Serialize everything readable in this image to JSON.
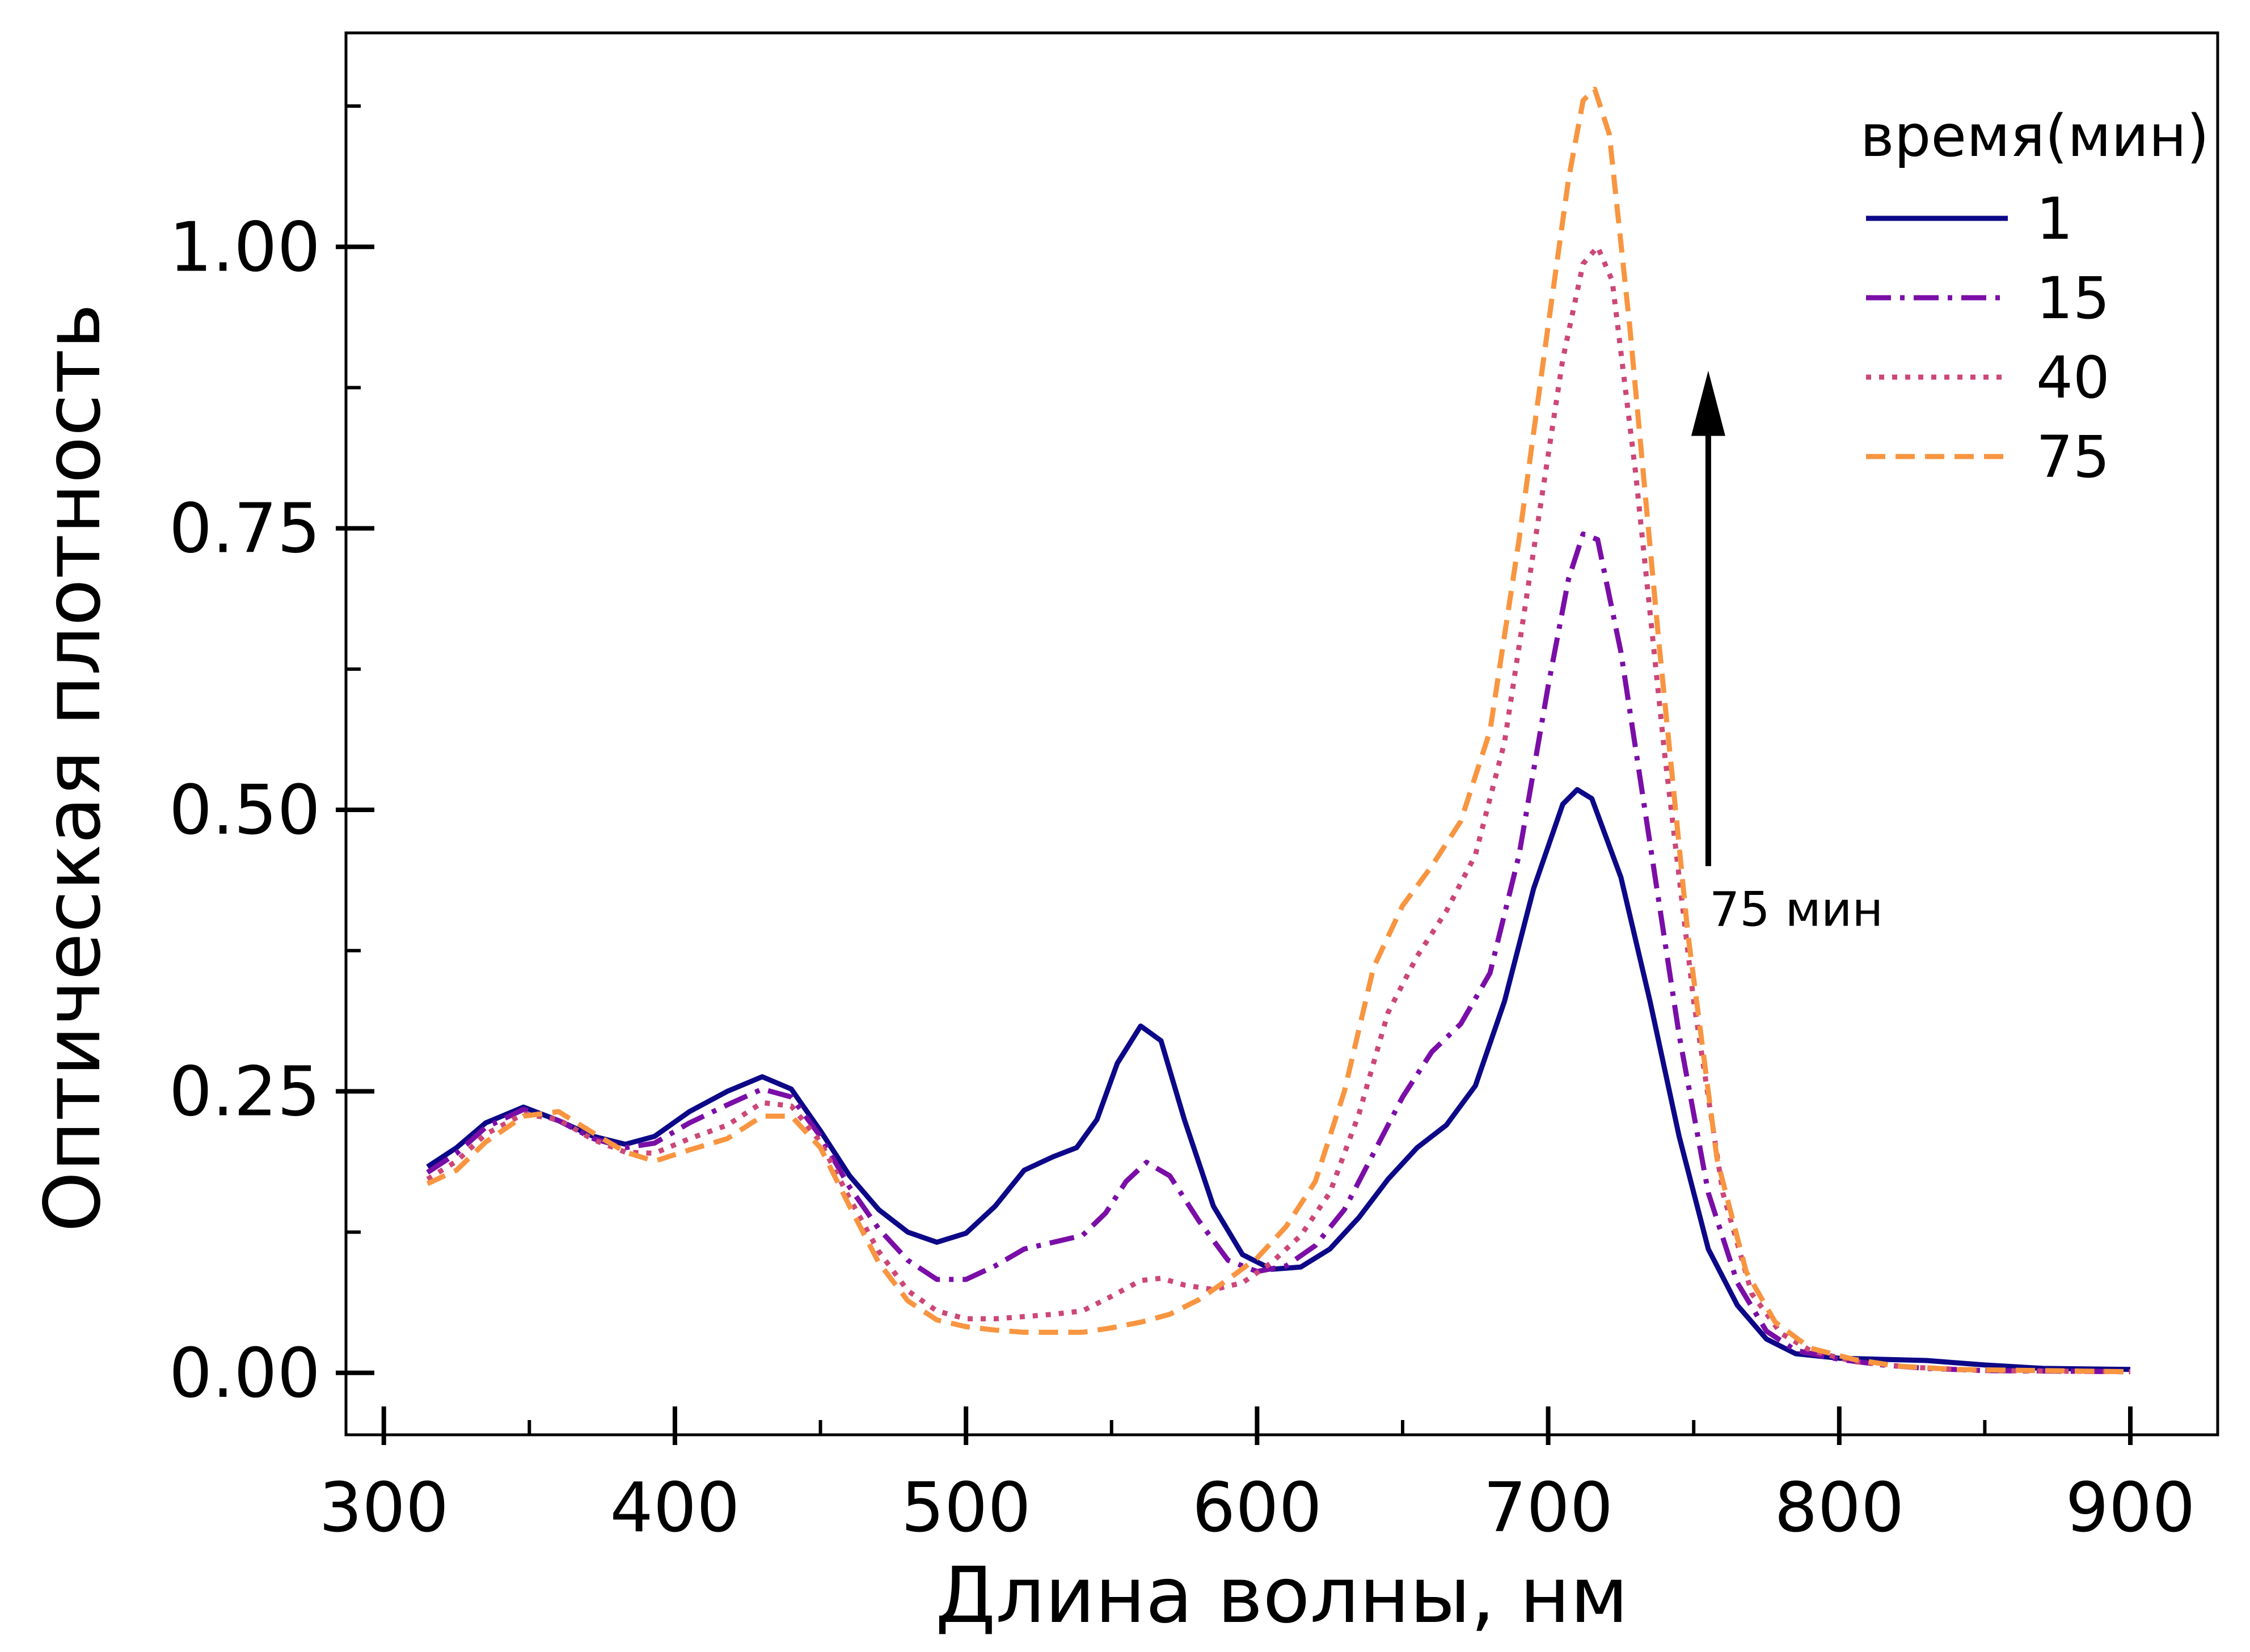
{
  "chart_data": {
    "type": "line",
    "xlabel": "Длина волны, нм",
    "ylabel": "Оптическая плотность",
    "xlim": [
      287,
      930
    ],
    "ylim": [
      -0.055,
      1.19
    ],
    "x_ticks": [
      300,
      400,
      500,
      600,
      700,
      800,
      900
    ],
    "x_tick_labels": [
      "300",
      "400",
      "500",
      "600",
      "700",
      "800",
      "900"
    ],
    "y_ticks": [
      0.0,
      0.25,
      0.5,
      0.75,
      1.0
    ],
    "y_tick_labels": [
      "0.00",
      "0.25",
      "0.50",
      "0.75",
      "1.00"
    ],
    "grid": false,
    "legend": {
      "title": "время(мин)",
      "position": "top-right"
    },
    "annotation": {
      "text": "75 мин",
      "arrow_x": 755,
      "arrow_from_y": 0.45,
      "arrow_to_y": 0.89
    },
    "series": [
      {
        "name": "1",
        "color": "#0d0887",
        "dash": "solid",
        "points": [
          [
            315,
            0.183
          ],
          [
            325,
            0.2
          ],
          [
            335,
            0.222
          ],
          [
            348,
            0.236
          ],
          [
            360,
            0.224
          ],
          [
            372,
            0.21
          ],
          [
            383,
            0.203
          ],
          [
            393,
            0.21
          ],
          [
            405,
            0.232
          ],
          [
            418,
            0.25
          ],
          [
            430,
            0.263
          ],
          [
            440,
            0.252
          ],
          [
            450,
            0.215
          ],
          [
            460,
            0.175
          ],
          [
            470,
            0.145
          ],
          [
            480,
            0.125
          ],
          [
            490,
            0.116
          ],
          [
            500,
            0.124
          ],
          [
            510,
            0.148
          ],
          [
            520,
            0.18
          ],
          [
            530,
            0.192
          ],
          [
            538,
            0.2
          ],
          [
            545,
            0.225
          ],
          [
            552,
            0.275
          ],
          [
            560,
            0.308
          ],
          [
            567,
            0.295
          ],
          [
            575,
            0.225
          ],
          [
            585,
            0.148
          ],
          [
            595,
            0.105
          ],
          [
            605,
            0.092
          ],
          [
            615,
            0.094
          ],
          [
            625,
            0.11
          ],
          [
            635,
            0.138
          ],
          [
            645,
            0.172
          ],
          [
            655,
            0.2
          ],
          [
            665,
            0.22
          ],
          [
            675,
            0.255
          ],
          [
            685,
            0.33
          ],
          [
            695,
            0.43
          ],
          [
            705,
            0.505
          ],
          [
            710,
            0.518
          ],
          [
            715,
            0.51
          ],
          [
            725,
            0.44
          ],
          [
            735,
            0.33
          ],
          [
            745,
            0.21
          ],
          [
            755,
            0.11
          ],
          [
            765,
            0.06
          ],
          [
            775,
            0.03
          ],
          [
            785,
            0.017
          ],
          [
            800,
            0.013
          ],
          [
            815,
            0.012
          ],
          [
            830,
            0.011
          ],
          [
            850,
            0.007
          ],
          [
            870,
            0.004
          ],
          [
            900,
            0.003
          ]
        ]
      },
      {
        "name": "15",
        "color": "#7a0ea7",
        "dash": "dashdot",
        "points": [
          [
            315,
            0.178
          ],
          [
            325,
            0.195
          ],
          [
            335,
            0.218
          ],
          [
            348,
            0.234
          ],
          [
            360,
            0.224
          ],
          [
            372,
            0.208
          ],
          [
            383,
            0.2
          ],
          [
            393,
            0.204
          ],
          [
            405,
            0.222
          ],
          [
            418,
            0.238
          ],
          [
            430,
            0.252
          ],
          [
            440,
            0.245
          ],
          [
            450,
            0.21
          ],
          [
            460,
            0.165
          ],
          [
            470,
            0.128
          ],
          [
            480,
            0.1
          ],
          [
            490,
            0.083
          ],
          [
            500,
            0.083
          ],
          [
            510,
            0.095
          ],
          [
            520,
            0.11
          ],
          [
            530,
            0.116
          ],
          [
            540,
            0.122
          ],
          [
            548,
            0.142
          ],
          [
            555,
            0.17
          ],
          [
            562,
            0.187
          ],
          [
            570,
            0.175
          ],
          [
            580,
            0.135
          ],
          [
            590,
            0.1
          ],
          [
            600,
            0.09
          ],
          [
            610,
            0.095
          ],
          [
            620,
            0.113
          ],
          [
            630,
            0.145
          ],
          [
            640,
            0.195
          ],
          [
            650,
            0.245
          ],
          [
            660,
            0.285
          ],
          [
            670,
            0.31
          ],
          [
            680,
            0.355
          ],
          [
            690,
            0.46
          ],
          [
            700,
            0.61
          ],
          [
            707,
            0.705
          ],
          [
            712,
            0.745
          ],
          [
            717,
            0.74
          ],
          [
            725,
            0.64
          ],
          [
            735,
            0.47
          ],
          [
            745,
            0.3
          ],
          [
            755,
            0.16
          ],
          [
            765,
            0.08
          ],
          [
            775,
            0.037
          ],
          [
            785,
            0.02
          ],
          [
            800,
            0.012
          ],
          [
            815,
            0.007
          ],
          [
            830,
            0.004
          ],
          [
            850,
            0.002
          ],
          [
            900,
            0.001
          ]
        ]
      },
      {
        "name": "40",
        "color": "#cc4778",
        "dash": "dotted",
        "points": [
          [
            315,
            0.172
          ],
          [
            325,
            0.188
          ],
          [
            335,
            0.212
          ],
          [
            348,
            0.23
          ],
          [
            360,
            0.225
          ],
          [
            372,
            0.207
          ],
          [
            383,
            0.196
          ],
          [
            393,
            0.195
          ],
          [
            405,
            0.208
          ],
          [
            418,
            0.22
          ],
          [
            430,
            0.24
          ],
          [
            440,
            0.237
          ],
          [
            450,
            0.205
          ],
          [
            460,
            0.155
          ],
          [
            470,
            0.108
          ],
          [
            480,
            0.073
          ],
          [
            490,
            0.055
          ],
          [
            500,
            0.048
          ],
          [
            510,
            0.048
          ],
          [
            520,
            0.05
          ],
          [
            530,
            0.052
          ],
          [
            540,
            0.055
          ],
          [
            550,
            0.068
          ],
          [
            560,
            0.082
          ],
          [
            567,
            0.084
          ],
          [
            575,
            0.078
          ],
          [
            585,
            0.074
          ],
          [
            595,
            0.08
          ],
          [
            605,
            0.098
          ],
          [
            615,
            0.122
          ],
          [
            625,
            0.16
          ],
          [
            635,
            0.23
          ],
          [
            645,
            0.32
          ],
          [
            655,
            0.37
          ],
          [
            665,
            0.41
          ],
          [
            675,
            0.46
          ],
          [
            685,
            0.56
          ],
          [
            695,
            0.73
          ],
          [
            705,
            0.9
          ],
          [
            712,
            0.985
          ],
          [
            717,
            1.0
          ],
          [
            722,
            0.97
          ],
          [
            730,
            0.8
          ],
          [
            740,
            0.55
          ],
          [
            750,
            0.33
          ],
          [
            760,
            0.16
          ],
          [
            770,
            0.07
          ],
          [
            780,
            0.035
          ],
          [
            790,
            0.02
          ],
          [
            805,
            0.01
          ],
          [
            825,
            0.005
          ],
          [
            850,
            0.002
          ],
          [
            900,
            0.001
          ]
        ]
      },
      {
        "name": "75",
        "color": "#f89540",
        "dash": "dashed",
        "points": [
          [
            315,
            0.168
          ],
          [
            325,
            0.18
          ],
          [
            335,
            0.205
          ],
          [
            348,
            0.228
          ],
          [
            360,
            0.232
          ],
          [
            372,
            0.213
          ],
          [
            383,
            0.196
          ],
          [
            393,
            0.188
          ],
          [
            405,
            0.198
          ],
          [
            418,
            0.208
          ],
          [
            430,
            0.228
          ],
          [
            440,
            0.228
          ],
          [
            450,
            0.2
          ],
          [
            460,
            0.148
          ],
          [
            470,
            0.098
          ],
          [
            480,
            0.064
          ],
          [
            490,
            0.047
          ],
          [
            500,
            0.041
          ],
          [
            510,
            0.038
          ],
          [
            520,
            0.036
          ],
          [
            530,
            0.036
          ],
          [
            540,
            0.036
          ],
          [
            550,
            0.04
          ],
          [
            560,
            0.045
          ],
          [
            570,
            0.052
          ],
          [
            580,
            0.065
          ],
          [
            590,
            0.083
          ],
          [
            600,
            0.102
          ],
          [
            610,
            0.13
          ],
          [
            620,
            0.17
          ],
          [
            630,
            0.25
          ],
          [
            640,
            0.36
          ],
          [
            650,
            0.415
          ],
          [
            660,
            0.45
          ],
          [
            670,
            0.49
          ],
          [
            680,
            0.57
          ],
          [
            690,
            0.74
          ],
          [
            700,
            0.93
          ],
          [
            707,
            1.06
          ],
          [
            712,
            1.13
          ],
          [
            716,
            1.14
          ],
          [
            721,
            1.1
          ],
          [
            728,
            0.93
          ],
          [
            738,
            0.65
          ],
          [
            748,
            0.39
          ],
          [
            758,
            0.19
          ],
          [
            768,
            0.09
          ],
          [
            778,
            0.045
          ],
          [
            790,
            0.022
          ],
          [
            805,
            0.012
          ],
          [
            820,
            0.006
          ],
          [
            840,
            0.003
          ],
          [
            900,
            0.001
          ]
        ]
      }
    ]
  }
}
